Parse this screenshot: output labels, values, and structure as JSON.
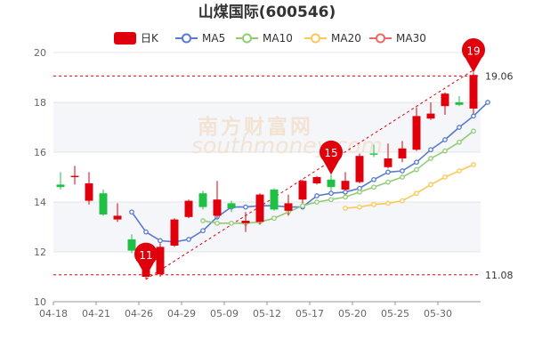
{
  "chart_data": {
    "type": "candlestick",
    "title": "山煤国际(600546)",
    "legend": [
      {
        "label": "日K",
        "color": "#e0000c",
        "kind": "box"
      },
      {
        "label": "MA5",
        "color": "#5a7ad0",
        "kind": "line"
      },
      {
        "label": "MA10",
        "color": "#91cc75",
        "kind": "line"
      },
      {
        "label": "MA20",
        "color": "#fac858",
        "kind": "line"
      },
      {
        "label": "MA30",
        "color": "#ee6666",
        "kind": "line"
      }
    ],
    "colors": {
      "up": "#e0000c",
      "down": "#1fc145",
      "dashed": "#e0000c"
    },
    "ylim": [
      10,
      20
    ],
    "y_ticks": [
      "10",
      "12",
      "14",
      "16",
      "18",
      "20"
    ],
    "x_tick_labels": [
      "04-18",
      "04-21",
      "04-26",
      "04-29",
      "05-09",
      "05-12",
      "05-17",
      "05-20",
      "05-25",
      "05-30"
    ],
    "x_tick_indices": [
      0,
      3,
      6,
      9,
      12,
      15,
      18,
      21,
      24,
      27
    ],
    "candles": [
      {
        "o": 14.7,
        "c": 14.6,
        "l": 14.5,
        "h": 15.2
      },
      {
        "o": 15.0,
        "c": 15.05,
        "l": 14.7,
        "h": 15.45
      },
      {
        "o": 14.05,
        "c": 14.75,
        "l": 13.9,
        "h": 15.2
      },
      {
        "o": 14.35,
        "c": 13.5,
        "l": 13.45,
        "h": 14.5
      },
      {
        "o": 13.3,
        "c": 13.45,
        "l": 13.2,
        "h": 13.95
      },
      {
        "o": 12.5,
        "c": 12.05,
        "l": 11.95,
        "h": 12.7
      },
      {
        "o": 11.0,
        "c": 11.3,
        "l": 10.9,
        "h": 11.6
      },
      {
        "o": 11.1,
        "c": 12.2,
        "l": 11.0,
        "h": 12.35
      },
      {
        "o": 12.25,
        "c": 13.3,
        "l": 12.2,
        "h": 13.35
      },
      {
        "o": 13.4,
        "c": 14.05,
        "l": 13.35,
        "h": 14.1
      },
      {
        "o": 14.35,
        "c": 13.8,
        "l": 13.7,
        "h": 14.45
      },
      {
        "o": 13.45,
        "c": 14.1,
        "l": 13.35,
        "h": 14.85
      },
      {
        "o": 13.95,
        "c": 13.75,
        "l": 13.6,
        "h": 14.05
      },
      {
        "o": 13.15,
        "c": 13.25,
        "l": 12.8,
        "h": 13.6
      },
      {
        "o": 13.2,
        "c": 14.3,
        "l": 13.1,
        "h": 14.35
      },
      {
        "o": 14.5,
        "c": 13.7,
        "l": 13.65,
        "h": 14.55
      },
      {
        "o": 13.65,
        "c": 13.95,
        "l": 13.45,
        "h": 14.3
      },
      {
        "o": 14.1,
        "c": 14.85,
        "l": 13.95,
        "h": 14.9
      },
      {
        "o": 14.75,
        "c": 15.0,
        "l": 14.7,
        "h": 15.05
      },
      {
        "o": 14.9,
        "c": 14.6,
        "l": 14.45,
        "h": 15.1
      },
      {
        "o": 14.5,
        "c": 14.85,
        "l": 14.45,
        "h": 15.2
      },
      {
        "o": 14.8,
        "c": 15.85,
        "l": 14.75,
        "h": 15.95
      },
      {
        "o": 15.95,
        "c": 15.9,
        "l": 15.8,
        "h": 16.3
      },
      {
        "o": 15.4,
        "c": 15.75,
        "l": 15.35,
        "h": 16.35
      },
      {
        "o": 15.75,
        "c": 16.15,
        "l": 15.6,
        "h": 16.45
      },
      {
        "o": 16.1,
        "c": 17.45,
        "l": 16.05,
        "h": 17.8
      },
      {
        "o": 17.35,
        "c": 17.55,
        "l": 17.3,
        "h": 18.0
      },
      {
        "o": 17.85,
        "c": 18.35,
        "l": 17.5,
        "h": 18.4
      },
      {
        "o": 18.0,
        "c": 17.9,
        "l": 17.85,
        "h": 18.25
      },
      {
        "o": 17.75,
        "c": 19.1,
        "l": 17.55,
        "h": 19.2
      }
    ],
    "series": [
      {
        "name": "MA5",
        "color": "#5a7ad0",
        "start": 5,
        "values": [
          13.6,
          12.8,
          12.45,
          12.4,
          12.5,
          12.85,
          13.4,
          13.8,
          13.8,
          13.85,
          13.85,
          13.8,
          13.8,
          14.25,
          14.35,
          14.4,
          14.55,
          14.9,
          15.2,
          15.25,
          15.6,
          16.1,
          16.5,
          17.0,
          17.45,
          18.0
        ]
      },
      {
        "name": "MA10",
        "color": "#91cc75",
        "start": 10,
        "values": [
          13.25,
          13.15,
          13.15,
          13.15,
          13.2,
          13.35,
          13.6,
          13.85,
          14.0,
          14.1,
          14.2,
          14.4,
          14.6,
          14.8,
          15.0,
          15.3,
          15.75,
          16.05,
          16.4,
          16.85
        ]
      },
      {
        "name": "MA20",
        "color": "#fac858",
        "start": 20,
        "values": [
          13.75,
          13.8,
          13.9,
          13.95,
          14.05,
          14.35,
          14.7,
          15.0,
          15.25,
          15.5
        ]
      }
    ],
    "reference_lines": [
      {
        "value": 19.06,
        "label": "19.06"
      },
      {
        "value": 11.08,
        "label": "11.08"
      }
    ],
    "markers": [
      {
        "index": 6,
        "value": 11.0,
        "label": "11"
      },
      {
        "index": 19,
        "value": 15.1,
        "label": "15"
      },
      {
        "index": 29,
        "value": 19.2,
        "label": "19"
      }
    ],
    "trendline": {
      "from_index": 6,
      "from_value": 10.9,
      "to_index": 29,
      "to_value": 19.3
    },
    "watermark": {
      "line1": "南方财富网",
      "line2": "southmoney.com"
    }
  }
}
